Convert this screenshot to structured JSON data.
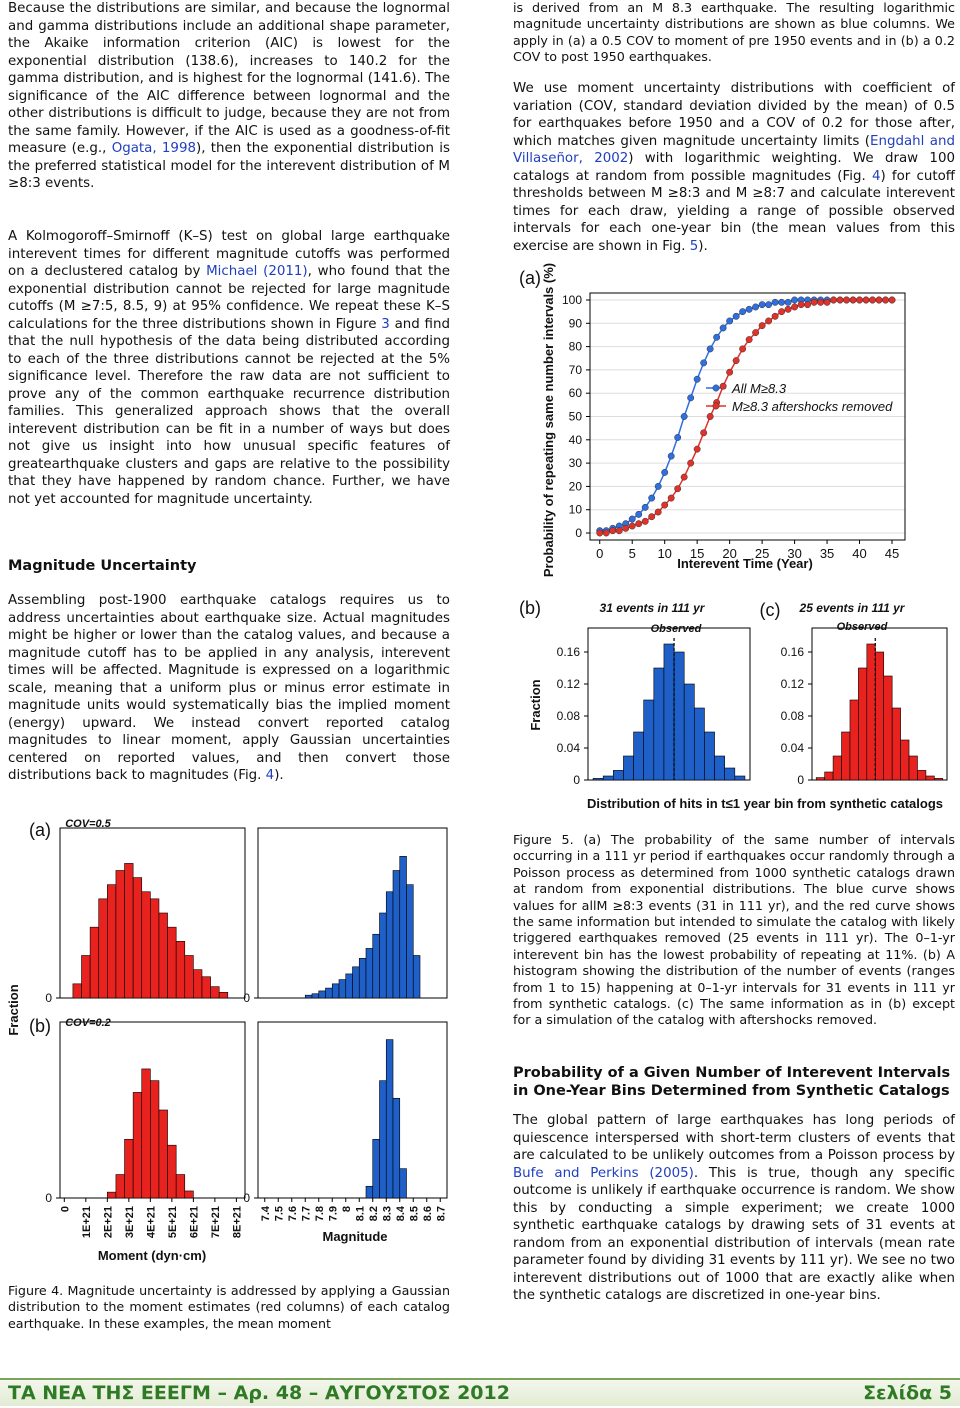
{
  "left_column": {
    "p1": [
      "Because the distributions are similar, and because the lognormal and gamma distributions include an additional shape parameter, the Akaike information criterion (AIC) is lowest for the exponential distribution (138.6), increases to 140.2 for the gamma distribution, and is highest for the lognormal (141.6). The significance of the AIC difference between lognormal and the other distributions is difficult to judge, because they are not from the same family. However, if the AIC is used as a goodness-of-fit measure (e.g., ",
      {
        "link": "Ogata, 1998"
      },
      "), then the exponential distribution is the preferred statistical model for the interevent distribution of M ≥8:3 events."
    ],
    "p2": [
      "A Kolmogoroff–Smirnoff (K–S) test on global large earthquake interevent times for different magnitude cutoffs was performed on a declustered catalog by ",
      {
        "link": "Michael (2011)"
      },
      ", who found that the exponential distribution cannot be rejected for large magnitude cutoffs (M ≥7:5, 8.5, 9) at 95% confidence. We repeat these K–S calculations for the three distributions shown in Figure ",
      {
        "link": "3"
      },
      " and find that the null hypothesis of the data being distributed according to each of the three distributions cannot be rejected at the 5% significance level. Therefore the raw data are not sufficient to prove any of the common earthquake recurrence distribution families. This generalized approach shows that the overall interevent distribution can be fit in a number of ways but does not give us insight into how unusual specific features of greatearthquake clusters and gaps are relative to the possibility that they have happened by random chance. Further, we have not yet accounted for magnitude uncertainty."
    ],
    "heading": "Magnitude Uncertainty",
    "p3": [
      "Assembling post-1900 earthquake catalogs requires us to address uncertainties about earthquake size. Actual magnitudes might be higher or lower than the catalog values, and because a magnitude cutoff has to be applied in any analysis, interevent times will be affected. Magnitude is expressed on a logarithmic scale, meaning that a uniform plus or minus error estimate in magnitude units would systematically bias the implied moment (energy) upward. We instead convert reported catalog magnitudes to linear moment, apply Gaussian uncertainties centered on reported values, and then convert those distributions back to magnitudes (Fig. ",
      {
        "link": "4"
      },
      ")."
    ],
    "figure4_caption": [
      "Figure 4. Magnitude uncertainty is addressed by applying a Gaussian distribution to the moment estimates (red columns) of each catalog earthquake. In these examples, the mean moment"
    ]
  },
  "right_column": {
    "p1": [
      "is derived from an M 8.3 earthquake. The resulting logarithmic magnitude uncertainty distributions are shown as blue columns. We apply in (a) a 0.5 COV to moment of pre 1950 events and in (b) a 0.2 COV to post 1950 earthquakes."
    ],
    "p2": [
      "We use moment uncertainty distributions with coefficient of variation (COV, standard deviation divided by the mean) of 0.5 for earthquakes before 1950 and a COV of 0.2 for those after, which matches given magnitude uncertainty limits (",
      {
        "link": "Engdahl and Villaseñor, 2002"
      },
      ") with logarithmic weighting. We draw 100 catalogs at random from possible magnitudes (Fig. ",
      {
        "link": "4"
      },
      ") for cutoff thresholds between M ≥8:3 and M ≥8:7 and calculate interevent times for each draw, yielding a range of possible observed intervals for each one-year bin (the mean values from this exercise are shown in Fig. ",
      {
        "link": "5"
      },
      ")."
    ],
    "figure5_caption": [
      "Figure 5. (a) The probability of the same number of intervals occurring in a 111 yr period if earthquakes occur randomly through a Poisson process as determined from 1000 synthetic catalogs drawn at random from exponential distributions. The blue curve shows values for allM ≥8:3 events (31 in 111 yr), and the red curve shows the same information but intended to simulate the catalog with likely triggered earthquakes removed (25 events in 111 yr). The 0–1-yr interevent bin has the lowest probability of repeating at  11%. (b) A histogram showing the distribution of the number of events (ranges from 1 to 15) happening at 0–1-yr intervals for 31 events in 111 yr from synthetic catalogs. (c) The same information as in (b) except for a simulation of the catalog with aftershocks removed."
    ],
    "heading": "Probability of a Given Number of Interevent Intervals in One-Year Bins Determined from Synthetic Catalogs",
    "p3": [
      "The global pattern of large earthquakes has long periods of quiescence interspersed with short-term clusters of events that are calculated to be unlikely outcomes from a Poisson process by ",
      {
        "link": "Bufe and Perkins (2005)"
      },
      ". This is true, though any specific outcome is unlikely if earthquake occurrence is random. We show this by conducting a simple experiment; we create 1000 synthetic earthquake catalogs by drawing sets of 31 events at random from an exponential distribution of intervals (mean rate parameter found by dividing 31 events by 111 yr). We see no two interevent distributions out of 1000 that are exactly alike when the synthetic catalogs are discretized in one-year bins."
    ]
  },
  "footer": {
    "left": "ΤΑ ΝΕΑ ΤΗΣ ΕΕΕΓΜ – Αρ. 48 – ΑΥΓΟΥΣΤΟΣ 2012",
    "right": "Σελίδα 5"
  },
  "chart_data": [
    {
      "type": "histogram",
      "panel_label": "(a)",
      "annotation": "COV=0.5",
      "ylabel": "Fraction",
      "color": "#e8231f",
      "bins": [
        0,
        4e+20,
        8e+20,
        1.2e+21,
        1.6e+21,
        2e+21,
        2.4e+21,
        2.8e+21,
        3.2e+21,
        3.6e+21,
        4e+21,
        4.4e+21,
        4.8e+21,
        5.2e+21,
        5.6e+21,
        6e+21,
        6.4e+21,
        6.8e+21,
        7.2e+21,
        7.6e+21,
        8e+21
      ],
      "counts": [
        0,
        0.01,
        0.03,
        0.05,
        0.07,
        0.08,
        0.09,
        0.095,
        0.085,
        0.075,
        0.07,
        0.06,
        0.05,
        0.04,
        0.03,
        0.02,
        0.015,
        0.008,
        0.004,
        0
      ],
      "xlim": [
        -2e+20,
        8.4e+21
      ],
      "ylim": [
        0,
        0.12
      ],
      "yticks": [
        0
      ]
    },
    {
      "type": "histogram",
      "color": "#1f5fc8",
      "bins": [
        7.4,
        7.45,
        7.5,
        7.55,
        7.6,
        7.65,
        7.7,
        7.75,
        7.8,
        7.85,
        7.9,
        7.95,
        8,
        8.05,
        8.1,
        8.15,
        8.2,
        8.25,
        8.3,
        8.35,
        8.4,
        8.45,
        8.5,
        8.55,
        8.6,
        8.65,
        8.7
      ],
      "counts": [
        0,
        0,
        0,
        0,
        0,
        0,
        0.002,
        0.003,
        0.005,
        0.007,
        0.01,
        0.013,
        0.017,
        0.022,
        0.028,
        0.035,
        0.045,
        0.06,
        0.075,
        0.09,
        0.1,
        0.08,
        0.03,
        0,
        0,
        0
      ],
      "xlim": [
        7.35,
        8.75
      ],
      "ylim": [
        0,
        0.12
      ],
      "yticks": [
        0
      ]
    },
    {
      "type": "histogram",
      "panel_label": "(b)",
      "annotation": "COV=0.2",
      "xlabel": "Moment (dyn·cm)",
      "color": "#e8231f",
      "bins": [
        0,
        4e+20,
        8e+20,
        1.2e+21,
        1.6e+21,
        2e+21,
        2.4e+21,
        2.8e+21,
        3.2e+21,
        3.6e+21,
        4e+21,
        4.4e+21,
        4.8e+21,
        5.2e+21,
        5.6e+21,
        6e+21,
        6.4e+21,
        6.8e+21,
        7.2e+21,
        7.6e+21,
        8e+21
      ],
      "counts": [
        0,
        0,
        0,
        0,
        0,
        0.01,
        0.04,
        0.1,
        0.18,
        0.22,
        0.2,
        0.15,
        0.09,
        0.04,
        0.012,
        0,
        0,
        0,
        0,
        0
      ],
      "xlim": [
        -2e+20,
        8.4e+21
      ],
      "ylim": [
        0,
        0.3
      ],
      "yticks": [
        0
      ],
      "xticks": [
        0,
        {
          "value": 1e+21,
          "label": "1E+21"
        },
        {
          "value": 2e+21,
          "label": "2E+21"
        },
        {
          "value": 3e+21,
          "label": "3E+21"
        },
        {
          "value": 4e+21,
          "label": "4E+21"
        },
        {
          "value": 5e+21,
          "label": "5E+21"
        },
        {
          "value": 6e+21,
          "label": "6E+21"
        },
        {
          "value": 7e+21,
          "label": "7E+21"
        },
        {
          "value": 8e+21,
          "label": "8E+21"
        }
      ]
    },
    {
      "type": "histogram",
      "xlabel": "Magnitude",
      "color": "#1f5fc8",
      "bins": [
        7.4,
        7.45,
        7.5,
        7.55,
        7.6,
        7.65,
        7.7,
        7.75,
        7.8,
        7.85,
        7.9,
        7.95,
        8,
        8.05,
        8.1,
        8.15,
        8.2,
        8.25,
        8.3,
        8.35,
        8.4,
        8.45,
        8.5,
        8.55,
        8.6,
        8.65,
        8.7
      ],
      "counts": [
        0,
        0,
        0,
        0,
        0,
        0,
        0,
        0,
        0,
        0,
        0,
        0,
        0,
        0,
        0,
        0.02,
        0.1,
        0.2,
        0.27,
        0.17,
        0.05,
        0,
        0,
        0,
        0,
        0
      ],
      "xlim": [
        7.35,
        8.75
      ],
      "ylim": [
        0,
        0.3
      ],
      "yticks": [
        0
      ],
      "xticks": [
        7.4,
        7.5,
        7.6,
        7.7,
        7.8,
        7.9,
        8,
        8.1,
        8.2,
        8.3,
        8.4,
        8.5,
        8.6,
        8.7
      ]
    },
    {
      "type": "line",
      "panel_label": "(a)",
      "xlabel": "Interevent Time (Year)",
      "ylabel": "Probability of repeating same number intervals (%)",
      "x": [
        0,
        1,
        2,
        3,
        4,
        5,
        6,
        7,
        8,
        9,
        10,
        11,
        12,
        13,
        14,
        15,
        16,
        17,
        18,
        19,
        20,
        21,
        22,
        23,
        24,
        25,
        26,
        27,
        28,
        29,
        30,
        31,
        32,
        33,
        34,
        35,
        36,
        37,
        38,
        39,
        40,
        41,
        42,
        43,
        44,
        45
      ],
      "series": [
        {
          "name": "All M≥8.3",
          "color": "#2f6fe0",
          "values": [
            1,
            1,
            2,
            3,
            4,
            6,
            8,
            11,
            15,
            20,
            26,
            33,
            41,
            50,
            58,
            66,
            73,
            79,
            84,
            88,
            91,
            93,
            95,
            96,
            97,
            98,
            98,
            99,
            99,
            99,
            100,
            100,
            100,
            100,
            100,
            100,
            100,
            100,
            100,
            100,
            100,
            100,
            100,
            100,
            100,
            100
          ]
        },
        {
          "name": "M≥8.3 aftershocks removed",
          "color": "#e0312a",
          "values": [
            0,
            0,
            1,
            1,
            2,
            3,
            4,
            5,
            7,
            9,
            12,
            15,
            19,
            24,
            30,
            36,
            43,
            50,
            56,
            63,
            69,
            74,
            79,
            83,
            86,
            89,
            91,
            93,
            95,
            96,
            97,
            98,
            98,
            99,
            99,
            99,
            100,
            100,
            100,
            100,
            100,
            100,
            100,
            100,
            100,
            100
          ]
        }
      ],
      "xlim": [
        -1.5,
        47
      ],
      "ylim": [
        -3,
        103
      ],
      "xticks": [
        0,
        5,
        10,
        15,
        20,
        25,
        30,
        35,
        40,
        45
      ],
      "yticks": [
        0,
        10,
        20,
        30,
        40,
        50,
        60,
        70,
        80,
        90,
        100
      ],
      "grid": true
    },
    {
      "type": "histogram",
      "panel_label": "(b)",
      "title": "31 events in 111 yr",
      "annotation": "Observed",
      "observed": 8.5,
      "ylabel": "Fraction",
      "xlabel": "Distribution of hits in t≤1 year bin from synthetic catalogs",
      "color": "#1f5fc8",
      "bins": [
        0.5,
        1.5,
        2.5,
        3.5,
        4.5,
        5.5,
        6.5,
        7.5,
        8.5,
        9.5,
        10.5,
        11.5,
        12.5,
        13.5,
        14.5,
        15.5
      ],
      "counts": [
        0.002,
        0.005,
        0.012,
        0.03,
        0.06,
        0.1,
        0.14,
        0.17,
        0.16,
        0.12,
        0.09,
        0.06,
        0.03,
        0.015,
        0.005
      ],
      "xlim": [
        0,
        16
      ],
      "ylim": [
        0,
        0.19
      ],
      "yticks": [
        0,
        0.04,
        0.08,
        0.12,
        0.16
      ]
    },
    {
      "type": "histogram",
      "panel_label": "(c)",
      "title": "25 events in 111 yr",
      "annotation": "Observed",
      "observed": 7.5,
      "color": "#e8231f",
      "bins": [
        0.5,
        1.5,
        2.5,
        3.5,
        4.5,
        5.5,
        6.5,
        7.5,
        8.5,
        9.5,
        10.5,
        11.5,
        12.5,
        13.5,
        14.5,
        15.5
      ],
      "counts": [
        0.003,
        0.01,
        0.03,
        0.06,
        0.1,
        0.14,
        0.17,
        0.16,
        0.13,
        0.09,
        0.05,
        0.03,
        0.012,
        0.005,
        0.002
      ],
      "xlim": [
        0,
        16
      ],
      "ylim": [
        0,
        0.19
      ],
      "yticks": [
        0,
        0.04,
        0.08,
        0.12,
        0.16
      ]
    }
  ]
}
